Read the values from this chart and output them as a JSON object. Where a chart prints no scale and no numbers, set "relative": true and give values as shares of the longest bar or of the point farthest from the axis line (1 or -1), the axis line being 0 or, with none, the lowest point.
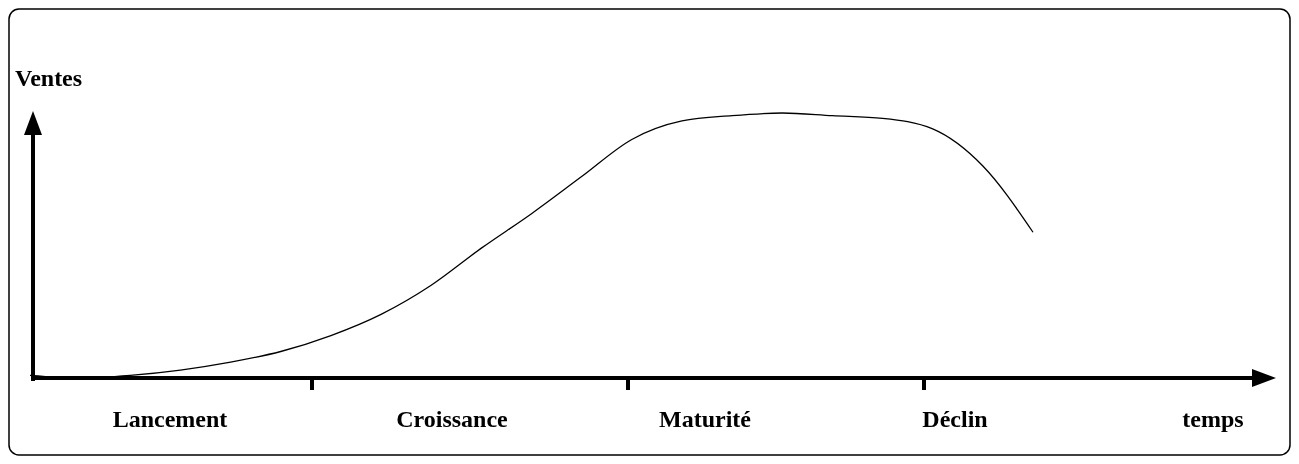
{
  "chart_data": {
    "type": "line",
    "relative": true,
    "ylabel": "Ventes",
    "categories": [
      null,
      null,
      null,
      null,
      null,
      null,
      null,
      null,
      null,
      null,
      null,
      null,
      null,
      null,
      null,
      null,
      null,
      null,
      null,
      null,
      null
    ],
    "series": [
      {
        "color": "#000000",
        "values": [
          0.01,
          0,
          0.01,
          0.03,
          0.06,
          0.1,
          0.16,
          0.24,
          0.35,
          0.49,
          0.62,
          0.76,
          0.9,
          0.97,
          0.99,
          1,
          0.99,
          0.98,
          0.94,
          0.8,
          0.55
        ]
      }
    ],
    "annotations": [
      "Lancement",
      "Croissance",
      "Maturité",
      "Déclin",
      "temps"
    ],
    "marker": "none",
    "line_style": "solid"
  }
}
